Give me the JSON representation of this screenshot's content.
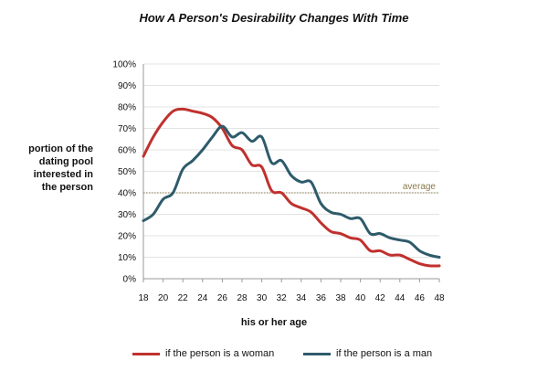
{
  "chart_data": {
    "type": "line",
    "title": "How A Person's Desirability Changes  With Time",
    "xlabel": "his or her age",
    "ylabel_lines": [
      "portion of the",
      "dating pool",
      "interested in",
      "the person"
    ],
    "x": [
      18,
      19,
      20,
      21,
      22,
      23,
      24,
      25,
      26,
      27,
      28,
      29,
      30,
      31,
      32,
      33,
      34,
      35,
      36,
      37,
      38,
      39,
      40,
      41,
      42,
      43,
      44,
      45,
      46,
      47,
      48
    ],
    "x_ticks": [
      "18",
      "20",
      "22",
      "24",
      "26",
      "28",
      "30",
      "32",
      "34",
      "36",
      "38",
      "40",
      "42",
      "44",
      "46",
      "48"
    ],
    "y_ticks": [
      "0%",
      "10%",
      "20%",
      "30%",
      "40%",
      "50%",
      "60%",
      "70%",
      "80%",
      "90%",
      "100%"
    ],
    "xlim": [
      18,
      48
    ],
    "ylim": [
      0,
      100
    ],
    "grid": "horizontal",
    "legend_placement": "bottom",
    "series": [
      {
        "name": "if the person is a woman",
        "color": "#c0312e",
        "values": [
          57,
          66,
          73,
          78,
          79,
          78,
          77,
          75,
          70,
          62,
          60,
          53,
          52,
          41,
          40,
          35,
          33,
          31,
          26,
          22,
          21,
          19,
          18,
          13,
          13,
          11,
          11,
          9,
          7,
          6,
          6
        ]
      },
      {
        "name": "if the person is a man",
        "color": "#2e5b6b",
        "values": [
          27,
          30,
          37,
          40,
          51,
          55,
          60,
          66,
          71,
          66,
          68,
          64,
          66,
          54,
          55,
          48,
          45,
          45,
          35,
          31,
          30,
          28,
          28,
          21,
          21,
          19,
          18,
          17,
          13,
          11,
          10
        ]
      }
    ],
    "reference_line": {
      "value": 40,
      "label": "average",
      "color": "#8a7a4a"
    }
  }
}
